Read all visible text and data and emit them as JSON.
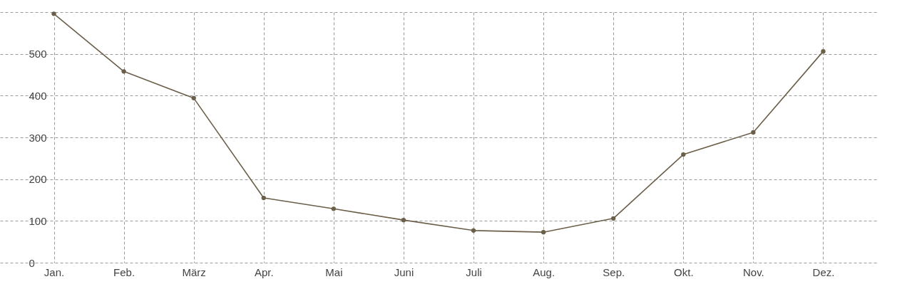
{
  "chart_data": {
    "type": "line",
    "categories": [
      "Jan.",
      "Feb.",
      "März",
      "Apr.",
      "Mai",
      "Juni",
      "Juli",
      "Aug.",
      "Sep.",
      "Okt.",
      "Nov.",
      "Dez."
    ],
    "series": [
      {
        "color": "#6b5f49",
        "values": [
          596,
          458,
          394,
          155,
          129,
          102,
          77,
          73,
          106,
          259,
          312,
          506
        ]
      }
    ],
    "ylim": [
      0,
      600
    ],
    "yticks": [
      0,
      100,
      200,
      300,
      400,
      500,
      {
        "value": 600,
        "label": null
      }
    ],
    "grid": true,
    "marker": "circle",
    "line_style": "solid",
    "legend": false
  }
}
